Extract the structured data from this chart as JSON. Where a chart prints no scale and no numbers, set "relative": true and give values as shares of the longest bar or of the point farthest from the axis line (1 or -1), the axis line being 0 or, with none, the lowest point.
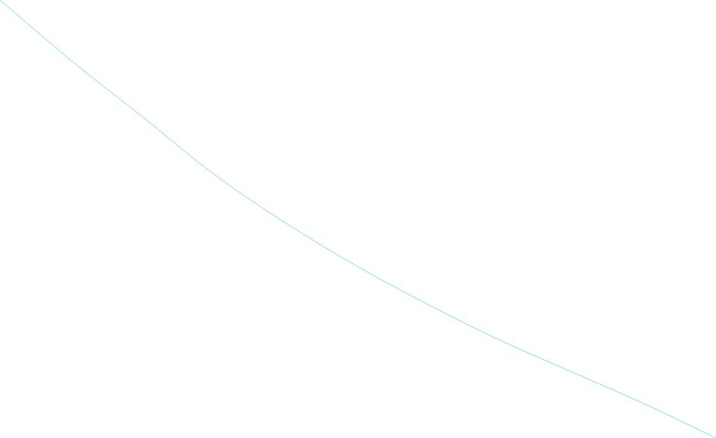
{
  "chart_data": {
    "type": "line",
    "relative": true,
    "categories": [
      null,
      null,
      null,
      null,
      null,
      null,
      null,
      null,
      null,
      null,
      null
    ],
    "series": [
      {
        "color": "#7dd8ef",
        "values": [
          1,
          0.861,
          0.732,
          0.601,
          0.49,
          0.391,
          0.303,
          0.222,
          0.15,
          0.078,
          0
        ]
      }
    ],
    "marker": "none",
    "legend": false
  }
}
